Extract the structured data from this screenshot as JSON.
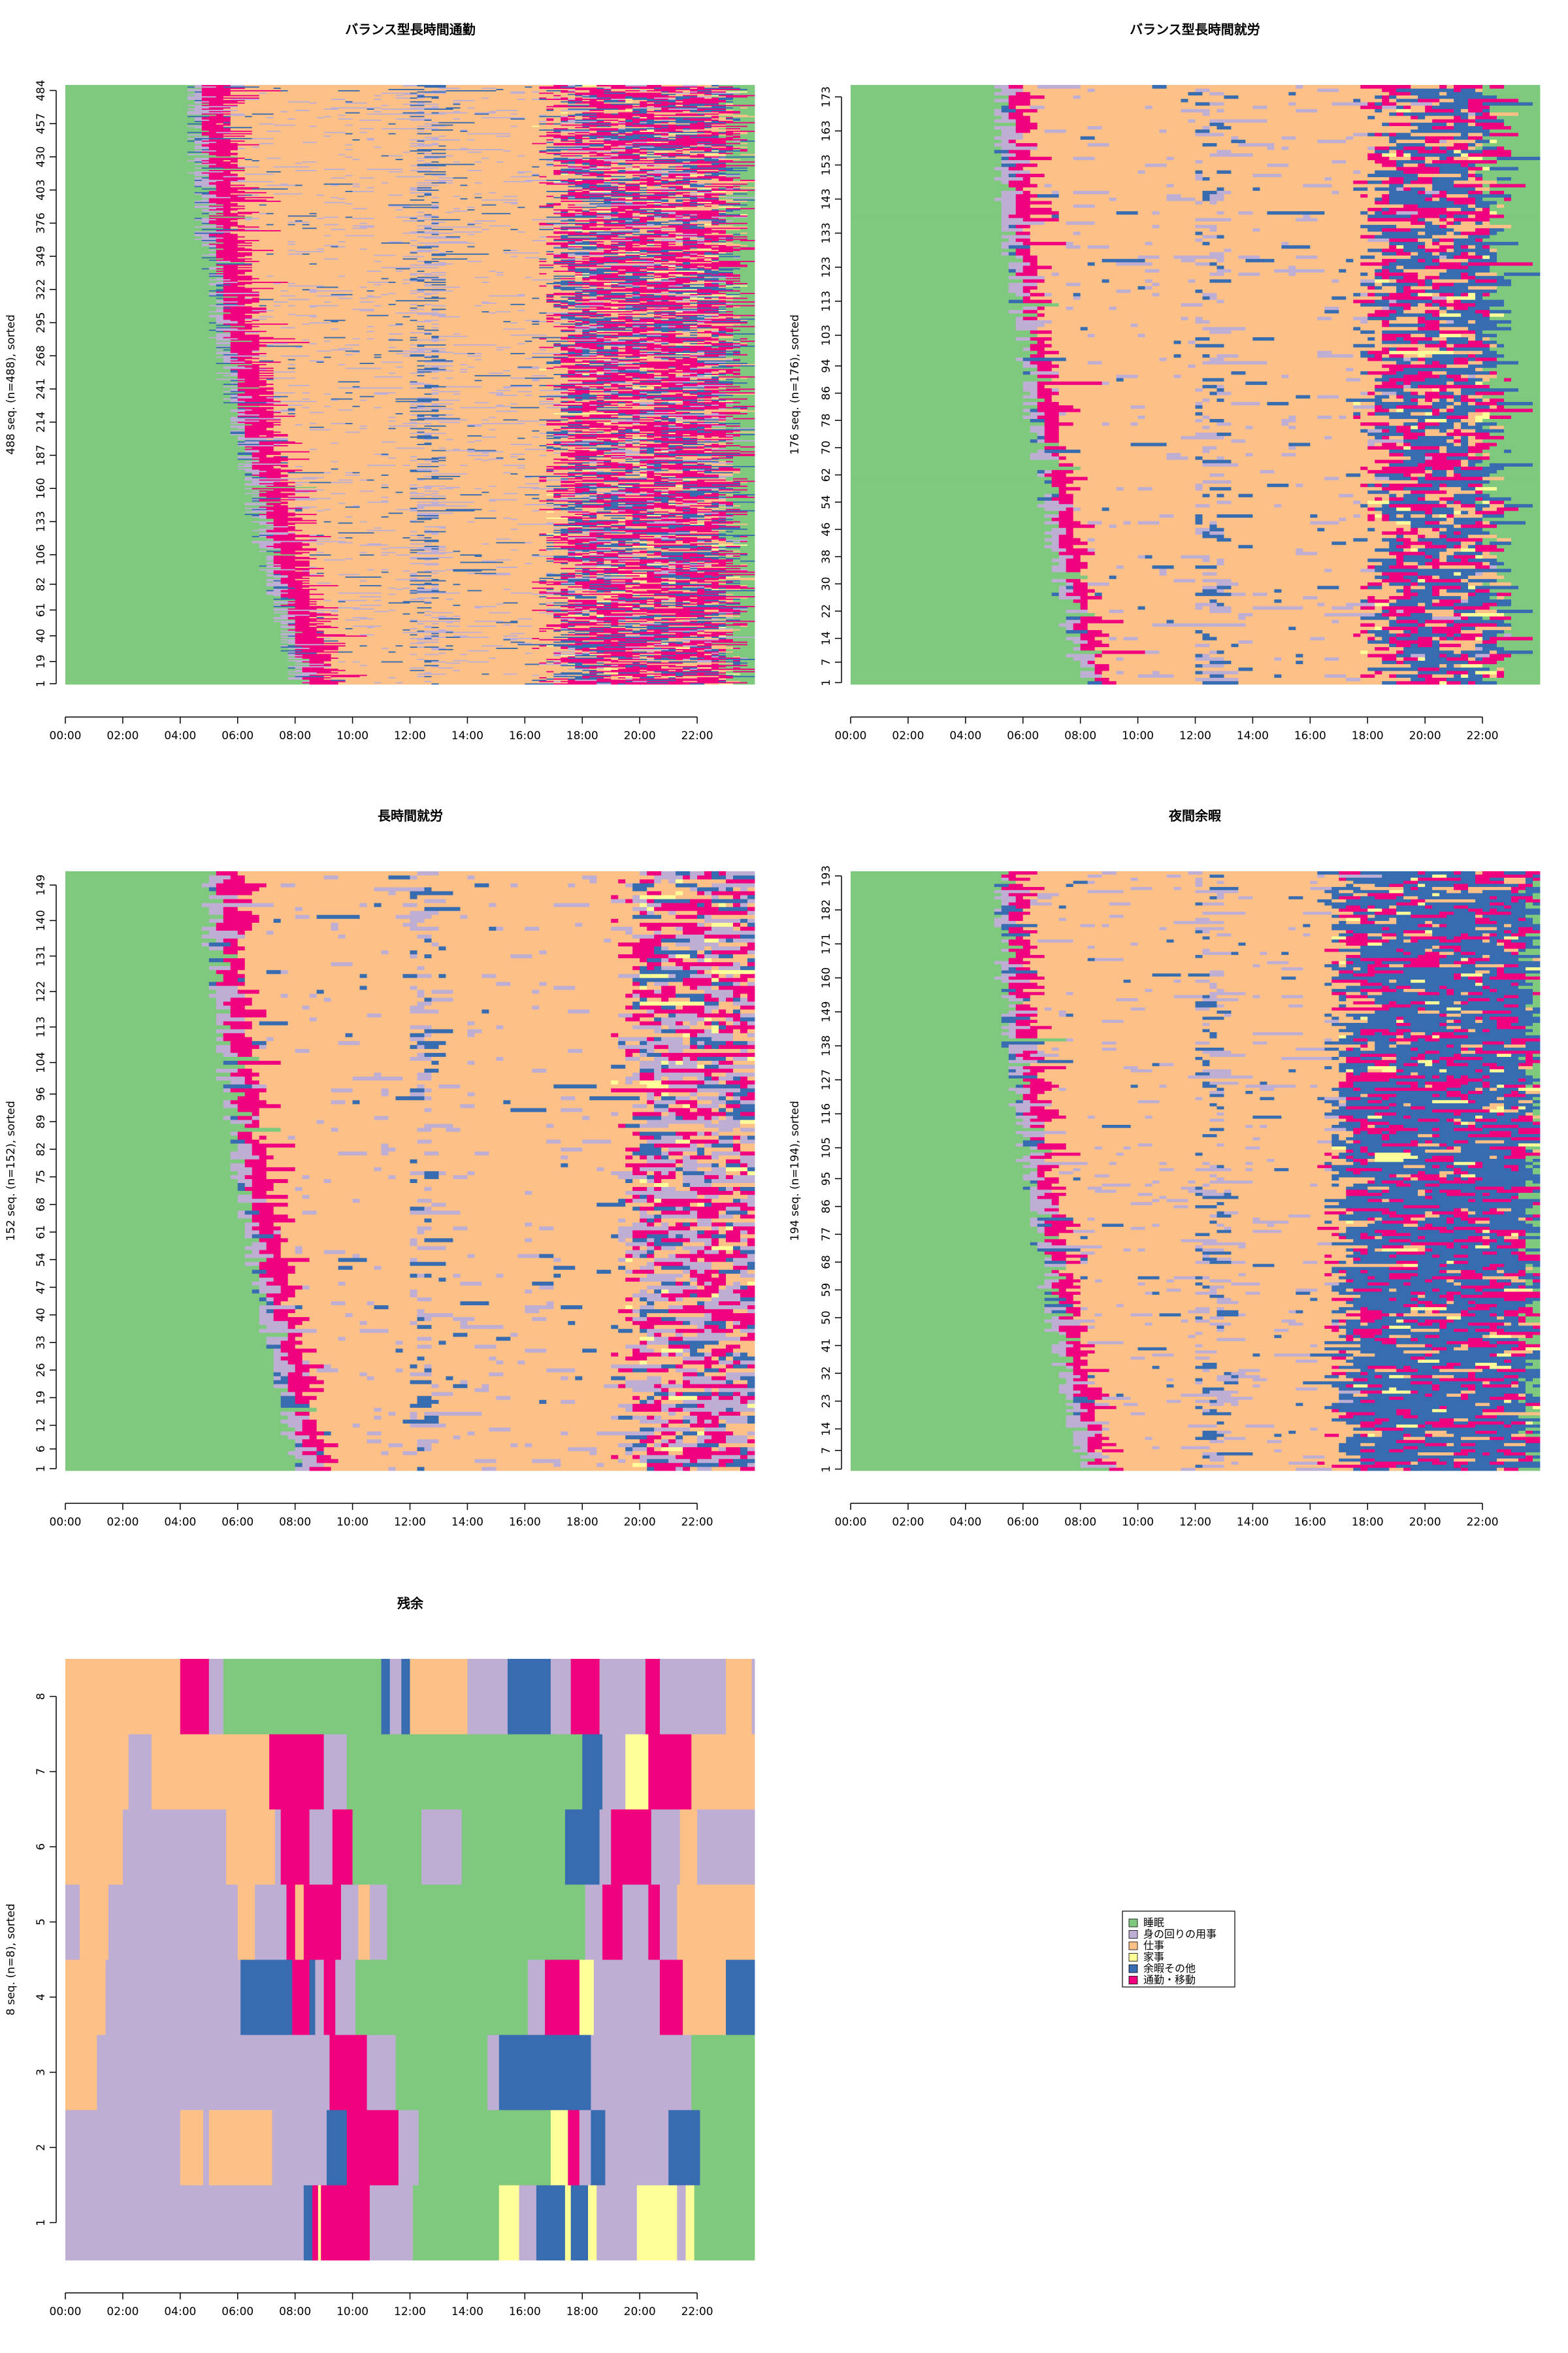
{
  "states": [
    {
      "key": "sleep",
      "label": "睡眠",
      "color": "#7FC97F"
    },
    {
      "key": "personal",
      "label": "身の回りの用事",
      "color": "#BEAED4"
    },
    {
      "key": "work",
      "label": "仕事",
      "color": "#FDC086"
    },
    {
      "key": "house",
      "label": "家事",
      "color": "#FFFF99"
    },
    {
      "key": "leisure",
      "label": "余暇その他",
      "color": "#386CB0"
    },
    {
      "key": "commute",
      "label": "通勤・移動",
      "color": "#F0027F"
    }
  ],
  "x_tick_labels": [
    "00:00",
    "02:00",
    "04:00",
    "06:00",
    "08:00",
    "10:00",
    "12:00",
    "14:00",
    "16:00",
    "18:00",
    "20:00",
    "22:00"
  ],
  "chart_data": [
    {
      "type": "sequence-index-plot",
      "title": "バランス型長時間通勤",
      "ylabel": "488 seq. (n=488), sorted",
      "n": 488,
      "y_tick_labels": [
        "1",
        "19",
        "40",
        "61",
        "82",
        "106",
        "133",
        "160",
        "187",
        "214",
        "241",
        "268",
        "295",
        "322",
        "349",
        "376",
        "403",
        "430",
        "457",
        "484"
      ],
      "xlim": [
        0,
        24
      ],
      "profile": {
        "wake_start": 4.3,
        "wake_end": 8.0,
        "commute_am": 1.0,
        "noon": [
          12.0,
          12.9
        ],
        "work_end": 16.9,
        "evening_commute": 0.45,
        "evening_leisure": 0.25,
        "sleep_at": 23.2,
        "noise": 0.07
      }
    },
    {
      "type": "sequence-index-plot",
      "title": "バランス型長時間就労",
      "ylabel": "176 seq. (n=176), sorted",
      "n": 176,
      "y_tick_labels": [
        "1",
        "7",
        "14",
        "22",
        "30",
        "38",
        "46",
        "54",
        "62",
        "70",
        "78",
        "86",
        "94",
        "103",
        "113",
        "123",
        "133",
        "143",
        "153",
        "163",
        "173"
      ],
      "xlim": [
        0,
        24
      ],
      "profile": {
        "wake_start": 5.0,
        "wake_end": 7.9,
        "commute_am": 0.6,
        "noon": [
          12.0,
          12.9
        ],
        "work_end": 18.0,
        "evening_commute": 0.3,
        "evening_leisure": 0.45,
        "sleep_at": 22.4,
        "noise": 0.05
      }
    },
    {
      "type": "sequence-index-plot",
      "title": "長時間就労",
      "ylabel": "152 seq. (n=152), sorted",
      "n": 152,
      "y_tick_labels": [
        "1",
        "6",
        "12",
        "19",
        "26",
        "33",
        "40",
        "47",
        "54",
        "61",
        "68",
        "75",
        "82",
        "89",
        "96",
        "104",
        "113",
        "122",
        "131",
        "140",
        "149"
      ],
      "xlim": [
        0,
        24
      ],
      "profile": {
        "wake_start": 4.8,
        "wake_end": 8.0,
        "commute_am": 0.75,
        "noon": [
          11.9,
          12.7
        ],
        "work_end": 19.5,
        "evening_commute": 0.3,
        "evening_leisure": 0.15,
        "sleep_at": 24.5,
        "noise": 0.05
      }
    },
    {
      "type": "sequence-index-plot",
      "title": "夜間余暇",
      "ylabel": "194 seq. (n=194), sorted",
      "n": 194,
      "y_tick_labels": [
        "1",
        "7",
        "14",
        "23",
        "32",
        "41",
        "50",
        "59",
        "68",
        "77",
        "86",
        "95",
        "105",
        "116",
        "127",
        "138",
        "149",
        "160",
        "171",
        "182",
        "193"
      ],
      "xlim": [
        0,
        24
      ],
      "profile": {
        "wake_start": 5.0,
        "wake_end": 8.0,
        "commute_am": 0.6,
        "noon": [
          12.0,
          12.9
        ],
        "work_end": 16.9,
        "evening_commute": 0.25,
        "evening_leisure": 0.65,
        "sleep_at": 23.8,
        "noise": 0.05
      }
    },
    {
      "type": "sequence-index-plot",
      "title": "残余",
      "ylabel": "8 seq. (n=8), sorted",
      "n": 8,
      "y_tick_labels": [
        "1",
        "2",
        "3",
        "4",
        "5",
        "6",
        "7",
        "8"
      ],
      "xlim": [
        0,
        24
      ],
      "sequences": [
        [
          [
            "personal",
            0,
            8.3
          ],
          [
            "leisure",
            8.3,
            8.6
          ],
          [
            "commute",
            8.6,
            8.8
          ],
          [
            "house",
            8.8,
            8.9
          ],
          [
            "commute",
            8.9,
            10.6
          ],
          [
            "personal",
            10.6,
            12.1
          ],
          [
            "sleep",
            12.1,
            15.1
          ],
          [
            "house",
            15.1,
            15.8
          ],
          [
            "personal",
            15.8,
            16.4
          ],
          [
            "leisure",
            16.4,
            17.4
          ],
          [
            "house",
            17.4,
            17.6
          ],
          [
            "leisure",
            17.6,
            18.2
          ],
          [
            "house",
            18.2,
            18.5
          ],
          [
            "personal",
            18.5,
            19.9
          ],
          [
            "house",
            19.9,
            21.3
          ],
          [
            "personal",
            21.3,
            21.6
          ],
          [
            "house",
            21.6,
            21.9
          ],
          [
            "sleep",
            21.9,
            24
          ]
        ],
        [
          [
            "personal",
            0,
            4.0
          ],
          [
            "work",
            4.0,
            4.8
          ],
          [
            "personal",
            4.8,
            5.0
          ],
          [
            "work",
            5.0,
            7.2
          ],
          [
            "personal",
            7.2,
            9.1
          ],
          [
            "leisure",
            9.1,
            9.8
          ],
          [
            "commute",
            9.8,
            11.6
          ],
          [
            "personal",
            11.6,
            12.3
          ],
          [
            "sleep",
            12.3,
            16.9
          ],
          [
            "house",
            16.9,
            17.5
          ],
          [
            "commute",
            17.5,
            17.9
          ],
          [
            "personal",
            17.9,
            18.3
          ],
          [
            "leisure",
            18.3,
            18.8
          ],
          [
            "personal",
            18.8,
            21.0
          ],
          [
            "leisure",
            21.0,
            22.1
          ],
          [
            "sleep",
            22.1,
            24
          ]
        ],
        [
          [
            "work",
            0,
            1.1
          ],
          [
            "personal",
            1.1,
            9.2
          ],
          [
            "commute",
            9.2,
            10.5
          ],
          [
            "personal",
            10.5,
            11.5
          ],
          [
            "sleep",
            11.5,
            14.7
          ],
          [
            "personal",
            14.7,
            15.1
          ],
          [
            "leisure",
            15.1,
            18.3
          ],
          [
            "personal",
            18.3,
            21.8
          ],
          [
            "sleep",
            21.8,
            24
          ]
        ],
        [
          [
            "work",
            0,
            1.4
          ],
          [
            "personal",
            1.4,
            6.1
          ],
          [
            "leisure",
            6.1,
            7.9
          ],
          [
            "commute",
            7.9,
            8.5
          ],
          [
            "leisure",
            8.5,
            8.7
          ],
          [
            "personal",
            8.7,
            9.0
          ],
          [
            "commute",
            9.0,
            9.4
          ],
          [
            "personal",
            9.4,
            10.1
          ],
          [
            "sleep",
            10.1,
            16.1
          ],
          [
            "personal",
            16.1,
            16.7
          ],
          [
            "commute",
            16.7,
            17.9
          ],
          [
            "house",
            17.9,
            18.4
          ],
          [
            "personal",
            18.4,
            20.7
          ],
          [
            "commute",
            20.7,
            21.5
          ],
          [
            "work",
            21.5,
            23.0
          ],
          [
            "leisure",
            23.0,
            24
          ]
        ],
        [
          [
            "personal",
            0,
            0.5
          ],
          [
            "work",
            0.5,
            1.5
          ],
          [
            "personal",
            1.5,
            6.0
          ],
          [
            "work",
            6.0,
            6.6
          ],
          [
            "personal",
            6.6,
            7.7
          ],
          [
            "commute",
            7.7,
            8.0
          ],
          [
            "work",
            8.0,
            8.3
          ],
          [
            "commute",
            8.3,
            9.6
          ],
          [
            "personal",
            9.6,
            10.2
          ],
          [
            "work",
            10.2,
            10.6
          ],
          [
            "personal",
            10.6,
            11.2
          ],
          [
            "sleep",
            11.2,
            18.1
          ],
          [
            "personal",
            18.1,
            18.7
          ],
          [
            "commute",
            18.7,
            19.4
          ],
          [
            "personal",
            19.4,
            20.3
          ],
          [
            "commute",
            20.3,
            20.7
          ],
          [
            "personal",
            20.7,
            21.3
          ],
          [
            "work",
            21.3,
            24
          ]
        ],
        [
          [
            "work",
            0,
            2.0
          ],
          [
            "personal",
            2.0,
            5.6
          ],
          [
            "work",
            5.6,
            7.3
          ],
          [
            "personal",
            7.3,
            7.5
          ],
          [
            "commute",
            7.5,
            8.5
          ],
          [
            "personal",
            8.5,
            9.3
          ],
          [
            "commute",
            9.3,
            10.0
          ],
          [
            "sleep",
            10.0,
            12.4
          ],
          [
            "personal",
            12.4,
            13.8
          ],
          [
            "sleep",
            13.8,
            17.4
          ],
          [
            "leisure",
            17.4,
            18.6
          ],
          [
            "personal",
            18.6,
            19.0
          ],
          [
            "commute",
            19.0,
            20.4
          ],
          [
            "personal",
            20.4,
            21.4
          ],
          [
            "work",
            21.4,
            22.0
          ],
          [
            "personal",
            22.0,
            24
          ]
        ],
        [
          [
            "work",
            0,
            2.2
          ],
          [
            "personal",
            2.2,
            3.0
          ],
          [
            "work",
            3.0,
            7.1
          ],
          [
            "commute",
            7.1,
            9.0
          ],
          [
            "personal",
            9.0,
            9.8
          ],
          [
            "sleep",
            9.8,
            18.0
          ],
          [
            "leisure",
            18.0,
            18.7
          ],
          [
            "personal",
            18.7,
            19.5
          ],
          [
            "house",
            19.5,
            20.3
          ],
          [
            "commute",
            20.3,
            21.8
          ],
          [
            "work",
            21.8,
            24
          ]
        ],
        [
          [
            "work",
            0,
            4.0
          ],
          [
            "commute",
            4.0,
            5.0
          ],
          [
            "personal",
            5.0,
            5.5
          ],
          [
            "sleep",
            5.5,
            11.0
          ],
          [
            "leisure",
            11.0,
            11.3
          ],
          [
            "personal",
            11.3,
            11.7
          ],
          [
            "leisure",
            11.7,
            12.0
          ],
          [
            "work",
            12.0,
            14.0
          ],
          [
            "personal",
            14.0,
            15.4
          ],
          [
            "leisure",
            15.4,
            16.9
          ],
          [
            "personal",
            16.9,
            17.6
          ],
          [
            "commute",
            17.6,
            18.6
          ],
          [
            "personal",
            18.6,
            20.2
          ],
          [
            "commute",
            20.2,
            20.7
          ],
          [
            "personal",
            20.7,
            23.0
          ],
          [
            "work",
            23.0,
            23.9
          ],
          [
            "personal",
            23.9,
            24
          ]
        ]
      ]
    }
  ]
}
